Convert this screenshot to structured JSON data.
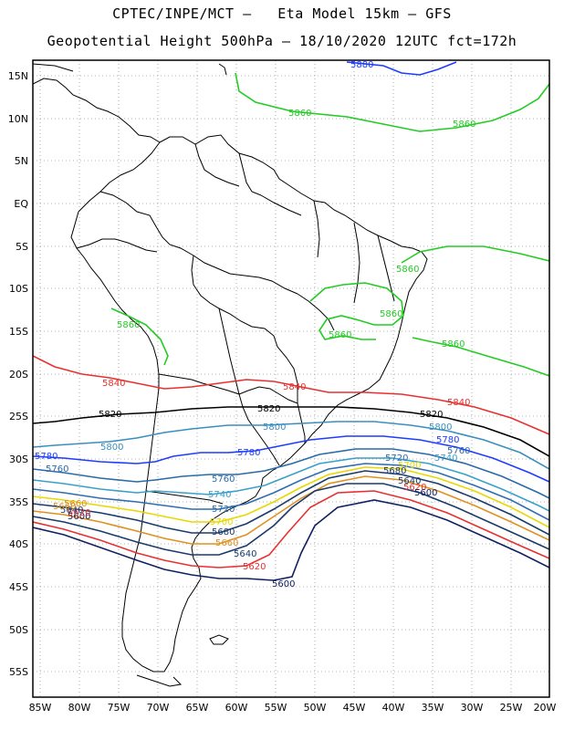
{
  "title_line1": "CPTEC/INPE/MCT –   Eta Model 15km – GFS",
  "title_line2": "Geopotential Height 500hPa – 18/10/2020 12UTC fct=172h",
  "lat_labels": [
    "15N",
    "10N",
    "5N",
    "EQ",
    "5S",
    "10S",
    "15S",
    "20S",
    "25S",
    "30S",
    "35S",
    "40S",
    "45S",
    "50S",
    "55S"
  ],
  "lon_labels": [
    "85W",
    "80W",
    "75W",
    "70W",
    "65W",
    "60W",
    "55W",
    "50W",
    "45W",
    "40W",
    "35W",
    "30W",
    "25W",
    "20W"
  ],
  "contour_labels": [
    {
      "text": "5880",
      "color": "#1e3cff"
    },
    {
      "text": "5860",
      "color": "#22cc22"
    },
    {
      "text": "5860",
      "color": "#22cc22"
    },
    {
      "text": "5860",
      "color": "#22cc22"
    },
    {
      "text": "5860",
      "color": "#22cc22"
    },
    {
      "text": "5860",
      "color": "#22cc22"
    },
    {
      "text": "5860",
      "color": "#22cc22"
    },
    {
      "text": "5860",
      "color": "#22cc22"
    },
    {
      "text": "5840",
      "color": "#e83030"
    },
    {
      "text": "5840",
      "color": "#e83030"
    },
    {
      "text": "5840",
      "color": "#e83030"
    },
    {
      "text": "5820",
      "color": "#000000"
    },
    {
      "text": "5820",
      "color": "#000000"
    },
    {
      "text": "5820",
      "color": "#000000"
    },
    {
      "text": "5800",
      "color": "#3a8fbf"
    },
    {
      "text": "5800",
      "color": "#3a8fbf"
    },
    {
      "text": "5800",
      "color": "#3a8fbf"
    },
    {
      "text": "5780",
      "color": "#1e3cff"
    },
    {
      "text": "5780",
      "color": "#1e3cff"
    },
    {
      "text": "5780",
      "color": "#1e3cff"
    },
    {
      "text": "5760",
      "color": "#2a6aa8"
    },
    {
      "text": "5760",
      "color": "#2a6aa8"
    },
    {
      "text": "5760",
      "color": "#2a6aa8"
    },
    {
      "text": "5740",
      "color": "#3aa0c8"
    },
    {
      "text": "5740",
      "color": "#3aa0c8"
    },
    {
      "text": "5720",
      "color": "#2f6db0"
    },
    {
      "text": "5720",
      "color": "#2f6db0"
    },
    {
      "text": "5700",
      "color": "#e8d800"
    },
    {
      "text": "5700",
      "color": "#e8d800"
    },
    {
      "text": "5680",
      "color": "#1a3a6a"
    },
    {
      "text": "5680",
      "color": "#1a3a6a"
    },
    {
      "text": "5660",
      "color": "#e09020"
    },
    {
      "text": "5660",
      "color": "#e09020"
    },
    {
      "text": "5640",
      "color": "#1a3a6a"
    },
    {
      "text": "5640",
      "color": "#1a3a6a"
    },
    {
      "text": "5620",
      "color": "#e83030"
    },
    {
      "text": "5620",
      "color": "#e83030"
    },
    {
      "text": "5600",
      "color": "#102060"
    },
    {
      "text": "5600",
      "color": "#102060"
    },
    {
      "text": "5600",
      "color": "#102060"
    },
    {
      "text": "5620",
      "color": "#e83030"
    },
    {
      "text": "5640",
      "color": "#1a3a6a"
    },
    {
      "text": "5660",
      "color": "#e09020"
    }
  ]
}
